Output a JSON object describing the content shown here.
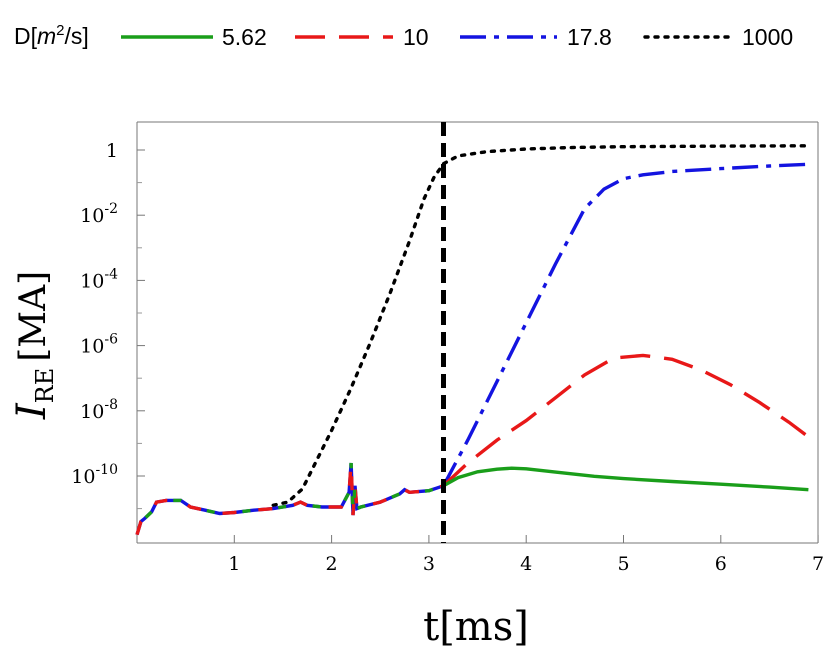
{
  "chart_data": {
    "type": "line",
    "xlabel": "t[ms]",
    "ylabel_main": "I",
    "ylabel_sub": "RE",
    "ylabel_unit": "[MA]",
    "legend_title_prefix": "D[",
    "legend_title_m": "m",
    "legend_title_exp": "2",
    "legend_title_suffix": "/s]",
    "legend_position": "top",
    "yscale": "log",
    "xlim": [
      0,
      7
    ],
    "ylim_log10": [
      -11.8,
      0.95
    ],
    "grid": false,
    "xticks": [
      1,
      2,
      3,
      4,
      5,
      6,
      7
    ],
    "xtick_labels": [
      "1",
      "2",
      "3",
      "4",
      "5",
      "6",
      "7"
    ],
    "yticks_log10": [
      -10,
      -8,
      -6,
      -4,
      -2,
      0
    ],
    "ytick_labels": [
      {
        "base": "10",
        "exp": "-10"
      },
      {
        "base": "10",
        "exp": "-8"
      },
      {
        "base": "10",
        "exp": "-6"
      },
      {
        "base": "10",
        "exp": "-4"
      },
      {
        "base": "10",
        "exp": "-2"
      },
      {
        "base": "1",
        "exp": ""
      }
    ],
    "vline_x": 3.15,
    "series": [
      {
        "name": "5.62",
        "color": "#1a9e1a",
        "dash": "solid",
        "x": [
          3.15,
          3.3,
          3.5,
          3.7,
          3.85,
          4.0,
          4.3,
          4.7,
          5.0,
          5.5,
          6.0,
          6.5,
          6.9
        ],
        "log10y": [
          -10.3,
          -10.05,
          -9.87,
          -9.79,
          -9.76,
          -9.78,
          -9.88,
          -10.01,
          -10.08,
          -10.17,
          -10.25,
          -10.34,
          -10.42
        ]
      },
      {
        "name": "10",
        "color": "#e81818",
        "dash": "dashed",
        "x": [
          3.15,
          3.4,
          3.7,
          4.0,
          4.3,
          4.6,
          4.9,
          5.2,
          5.5,
          5.8,
          6.1,
          6.4,
          6.7,
          6.9
        ],
        "log10y": [
          -10.3,
          -9.6,
          -8.9,
          -8.3,
          -7.6,
          -6.9,
          -6.38,
          -6.3,
          -6.42,
          -6.75,
          -7.2,
          -7.75,
          -8.35,
          -8.8
        ]
      },
      {
        "name": "17.8",
        "color": "#1414e0",
        "dash": "dashdot",
        "x": [
          3.15,
          3.4,
          3.7,
          4.0,
          4.3,
          4.6,
          4.8,
          5.0,
          5.2,
          5.5,
          6.0,
          6.5,
          6.9
        ],
        "log10y": [
          -10.3,
          -8.9,
          -7.1,
          -5.3,
          -3.5,
          -1.8,
          -1.2,
          -0.88,
          -0.76,
          -0.66,
          -0.57,
          -0.49,
          -0.44
        ]
      },
      {
        "name": "1000",
        "color": "#000000",
        "dash": "dotted",
        "x": [
          1.4,
          1.55,
          1.7,
          1.85,
          2.0,
          2.2,
          2.4,
          2.6,
          2.8,
          2.95,
          3.05,
          3.15,
          3.3,
          3.6,
          4.0,
          4.5,
          5.0,
          6.0,
          6.9
        ],
        "log10y": [
          -10.9,
          -10.8,
          -10.4,
          -9.5,
          -8.6,
          -7.3,
          -5.9,
          -4.4,
          -2.8,
          -1.5,
          -0.85,
          -0.42,
          -0.18,
          -0.05,
          0.03,
          0.08,
          0.1,
          0.12,
          0.13
        ]
      }
    ],
    "common_early": {
      "x": [
        0.0,
        0.04,
        0.08,
        0.15,
        0.2,
        0.3,
        0.45,
        0.55,
        0.7,
        0.85,
        1.0,
        1.2,
        1.4,
        1.6,
        1.68,
        1.75,
        1.9,
        2.1,
        2.18,
        2.2,
        2.22,
        2.24,
        2.26,
        2.3,
        2.5,
        2.7,
        2.75,
        2.8,
        3.0,
        3.15
      ],
      "log10y": [
        -11.8,
        -11.4,
        -11.3,
        -11.1,
        -10.8,
        -10.75,
        -10.75,
        -10.95,
        -11.05,
        -11.15,
        -11.12,
        -11.05,
        -11.0,
        -10.9,
        -10.8,
        -10.9,
        -10.95,
        -10.95,
        -10.5,
        -9.6,
        -11.2,
        -10.3,
        -11.0,
        -10.95,
        -10.8,
        -10.55,
        -10.42,
        -10.5,
        -10.45,
        -10.3
      ]
    }
  }
}
